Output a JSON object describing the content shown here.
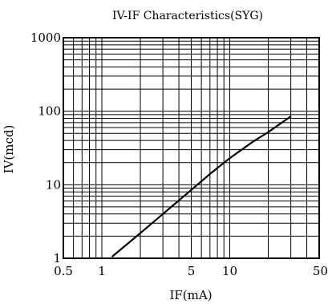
{
  "chart_data": {
    "type": "line",
    "title": "IV-IF  Characteristics(SYG)",
    "xlabel": "IF(mA)",
    "ylabel": "IV(mcd)",
    "x_scale": "log",
    "y_scale": "log",
    "xlim": [
      0.5,
      50
    ],
    "ylim": [
      1,
      1000
    ],
    "x_tick_labels": [
      {
        "value": 0.5,
        "label": "0.5"
      },
      {
        "value": 1,
        "label": "1"
      },
      {
        "value": 5,
        "label": "5"
      },
      {
        "value": 10,
        "label": "10"
      },
      {
        "value": 50,
        "label": "50"
      }
    ],
    "y_tick_labels": [
      {
        "value": 1,
        "label": "1"
      },
      {
        "value": 10,
        "label": "10"
      },
      {
        "value": 100,
        "label": "100"
      },
      {
        "value": 1000,
        "label": "1000"
      }
    ],
    "grid": true,
    "series": [
      {
        "x": [
          1.2,
          2,
          3,
          5,
          7,
          10,
          15,
          20,
          30
        ],
        "y": [
          1.05,
          2.2,
          4,
          8.5,
          14,
          23,
          38,
          52,
          85
        ]
      }
    ]
  }
}
